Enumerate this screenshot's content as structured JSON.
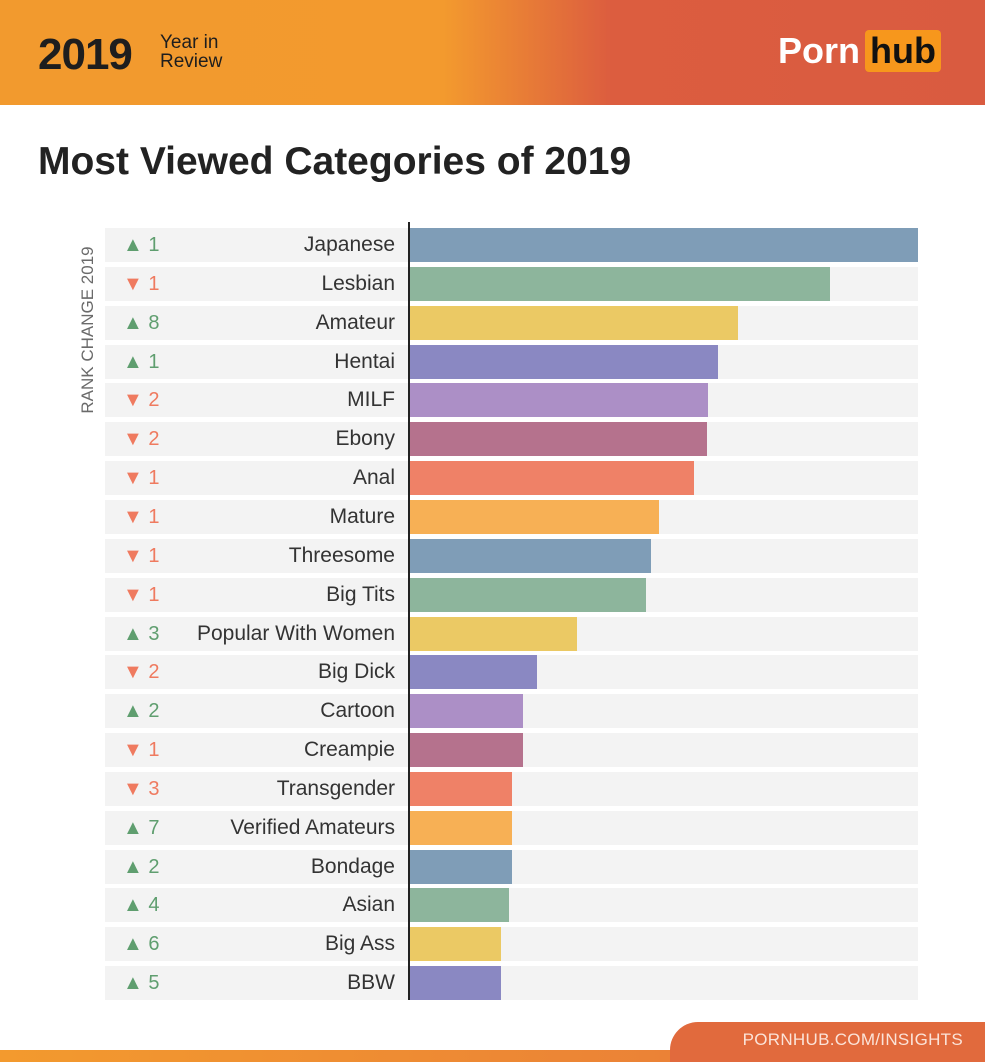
{
  "header": {
    "year": "2019",
    "subtitle_line1": "Year in",
    "subtitle_line2": "Review",
    "logo_left": "Porn",
    "logo_right": "hub"
  },
  "footer": {
    "url": "PORNHUB.COM/INSIGHTS"
  },
  "colors": {
    "up": "#5f9e6f",
    "down": "#ef7a5f",
    "bar_cycle": [
      "#7f9db7",
      "#8db59c",
      "#ebc964",
      "#8a88c2",
      "#ac8fc6",
      "#b5728d",
      "#ef8167",
      "#f7b055"
    ]
  },
  "chart_data": {
    "type": "bar",
    "orientation": "horizontal",
    "title": "Most Viewed Categories of 2019",
    "side_label": "RANK CHANGE 2019",
    "value_axis": "none (relative bar length, % of top bar)",
    "categories": [
      "Japanese",
      "Lesbian",
      "Amateur",
      "Hentai",
      "MILF",
      "Ebony",
      "Anal",
      "Mature",
      "Threesome",
      "Big Tits",
      "Popular With Women",
      "Big Dick",
      "Cartoon",
      "Creampie",
      "Transgender",
      "Verified Amateurs",
      "Bondage",
      "Asian",
      "Big Ass",
      "BBW"
    ],
    "values": [
      100,
      82.7,
      64.6,
      60.6,
      58.7,
      58.5,
      55.9,
      49.0,
      47.4,
      46.5,
      32.9,
      25.0,
      22.2,
      22.2,
      20.1,
      20.1,
      20.1,
      19.5,
      17.9,
      17.9
    ],
    "rank_change": [
      {
        "dir": "up",
        "n": "1"
      },
      {
        "dir": "down",
        "n": "1"
      },
      {
        "dir": "up",
        "n": "8"
      },
      {
        "dir": "up",
        "n": "1"
      },
      {
        "dir": "down",
        "n": "2"
      },
      {
        "dir": "down",
        "n": "2"
      },
      {
        "dir": "down",
        "n": "1"
      },
      {
        "dir": "down",
        "n": "1"
      },
      {
        "dir": "down",
        "n": "1"
      },
      {
        "dir": "down",
        "n": "1"
      },
      {
        "dir": "up",
        "n": "3"
      },
      {
        "dir": "down",
        "n": "2"
      },
      {
        "dir": "up",
        "n": "2"
      },
      {
        "dir": "down",
        "n": "1"
      },
      {
        "dir": "down",
        "n": "3"
      },
      {
        "dir": "up",
        "n": "7"
      },
      {
        "dir": "up",
        "n": "2"
      },
      {
        "dir": "up",
        "n": "4"
      },
      {
        "dir": "up",
        "n": "6"
      },
      {
        "dir": "up",
        "n": "5"
      }
    ],
    "grid": false
  }
}
